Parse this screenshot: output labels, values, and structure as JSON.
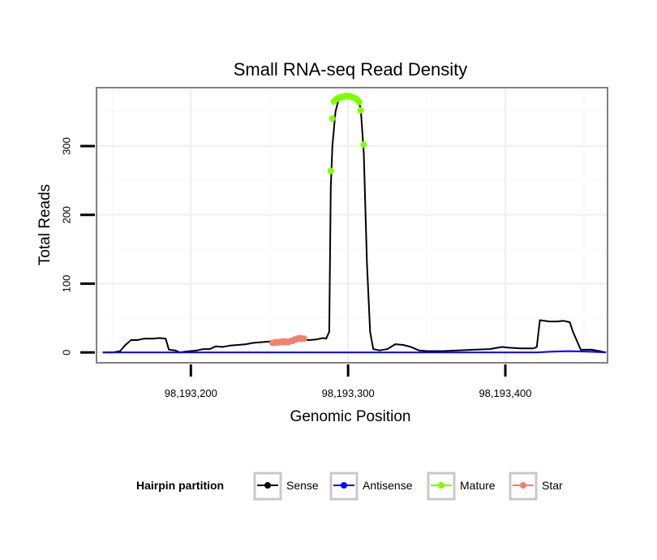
{
  "chart_data": {
    "type": "line",
    "title": "Small RNA-seq Read Density",
    "xlabel": "Genomic Position",
    "ylabel": "Total Reads",
    "xlim": [
      98193140,
      98193465
    ],
    "ylim": [
      -15,
      385
    ],
    "x_ticks": [
      98193200,
      98193300,
      98193400
    ],
    "x_tick_labels": [
      "98,193,200",
      "98,193,300",
      "98,193,400"
    ],
    "y_ticks": [
      0,
      100,
      200,
      300
    ],
    "y_tick_labels": [
      "0",
      "100",
      "200",
      "300"
    ],
    "grid": true,
    "legend": {
      "title": "Hairpin partition",
      "position": "bottom",
      "entries": [
        {
          "label": "Sense",
          "color": "#000000"
        },
        {
          "label": "Antisense",
          "color": "#0000ff"
        },
        {
          "label": "Mature",
          "color": "#7fff00"
        },
        {
          "label": "Star",
          "color": "#f08070"
        }
      ]
    },
    "series": [
      {
        "name": "Sense",
        "color": "#000000",
        "x": [
          98193144,
          98193150,
          98193155,
          98193158,
          98193162,
          98193166,
          98193170,
          98193176,
          98193180,
          98193184,
          98193186,
          98193190,
          98193193,
          98193196,
          98193200,
          98193204,
          98193208,
          98193212,
          98193216,
          98193220,
          98193225,
          98193230,
          98193235,
          98193240,
          98193245,
          98193250,
          98193255,
          98193260,
          98193265,
          98193270,
          98193275,
          98193280,
          98193284,
          98193286,
          98193288,
          98193289,
          98193290,
          98193292,
          98193294,
          98193297,
          98193300,
          98193303,
          98193306,
          98193308,
          98193310,
          98193312,
          98193314,
          98193316,
          98193320,
          98193325,
          98193330,
          98193335,
          98193340,
          98193345,
          98193350,
          98193355,
          98193360,
          98193370,
          98193380,
          98193390,
          98193398,
          98193402,
          98193410,
          98193418,
          98193420,
          98193422,
          98193428,
          98193433,
          98193437,
          98193441,
          98193443,
          98193448,
          98193455,
          98193460,
          98193464
        ],
        "y": [
          0,
          0,
          2,
          10,
          18,
          18,
          20,
          20,
          21,
          20,
          4,
          3,
          0,
          1,
          2,
          3,
          5,
          5,
          9,
          8,
          10,
          11,
          12,
          14,
          15,
          16,
          15,
          16,
          18,
          19,
          18,
          19,
          21,
          20,
          30,
          240,
          300,
          350,
          368,
          372,
          373,
          372,
          368,
          355,
          290,
          130,
          30,
          5,
          3,
          5,
          12,
          11,
          8,
          3,
          2,
          2,
          2,
          3,
          4,
          5,
          8,
          7,
          6,
          6,
          8,
          47,
          45,
          45,
          46,
          44,
          30,
          4,
          4,
          2,
          0
        ]
      },
      {
        "name": "Antisense",
        "color": "#0000ff",
        "x": [
          98193144,
          98193420,
          98193428,
          98193440,
          98193455,
          98193464
        ],
        "y": [
          0,
          0,
          1,
          2,
          1,
          0
        ]
      },
      {
        "name": "Mature",
        "color": "#7fff00",
        "x": [
          98193289,
          98193290,
          98193291,
          98193292,
          98193293,
          98193294,
          98193295,
          98193296,
          98193297,
          98193298,
          98193299,
          98193300,
          98193301,
          98193302,
          98193303,
          98193304,
          98193305,
          98193306,
          98193307,
          98193308,
          98193310
        ],
        "y": [
          264,
          340,
          365,
          367,
          369,
          370,
          371,
          371,
          372,
          373,
          373,
          372,
          372,
          372,
          371,
          370,
          369,
          367,
          364,
          352,
          302
        ]
      },
      {
        "name": "Star",
        "color": "#f08070",
        "x": [
          98193252,
          98193253,
          98193254,
          98193255,
          98193256,
          98193257,
          98193258,
          98193259,
          98193260,
          98193261,
          98193262,
          98193263,
          98193264,
          98193265,
          98193266,
          98193267,
          98193268,
          98193269,
          98193270,
          98193271,
          98193272
        ],
        "y": [
          14,
          14,
          15,
          14,
          15,
          15,
          16,
          15,
          16,
          15,
          15,
          16,
          17,
          17,
          19,
          19,
          20,
          21,
          20,
          20,
          20
        ]
      }
    ]
  }
}
